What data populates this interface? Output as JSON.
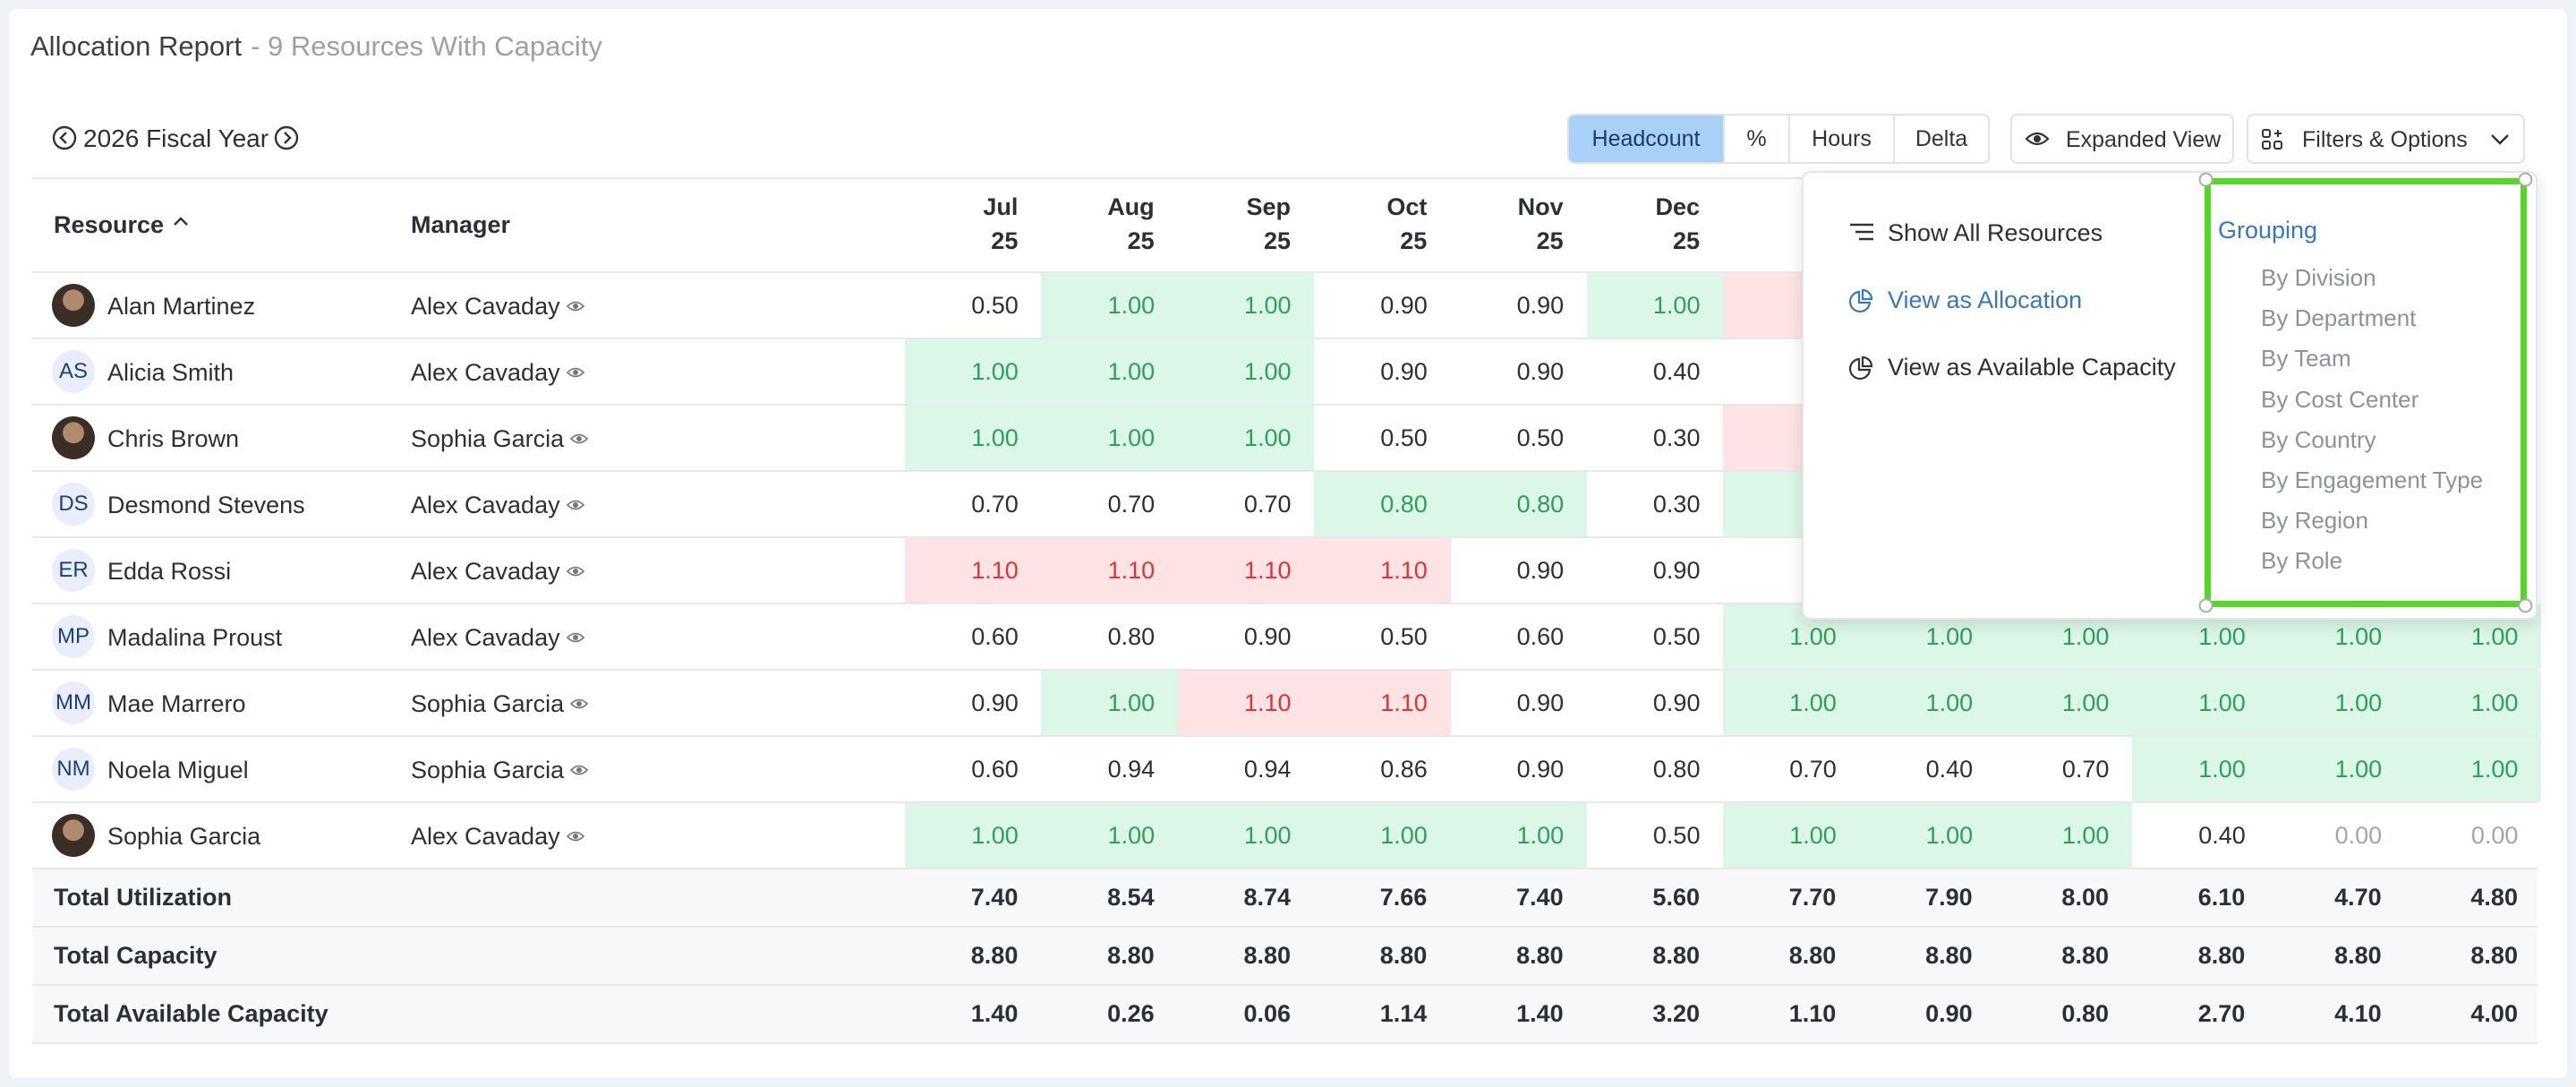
{
  "header": {
    "title": "Allocation Report",
    "subtitle": "- 9 Resources With Capacity"
  },
  "toolbar": {
    "period": "2026 Fiscal Year",
    "modes": [
      "Headcount",
      "%",
      "Hours",
      "Delta"
    ],
    "active_mode": 0,
    "expanded": "Expanded View",
    "filters": "Filters & Options"
  },
  "table": {
    "columns": {
      "resource": "Resource",
      "manager": "Manager"
    },
    "months": [
      {
        "month": "Jul",
        "year": "25"
      },
      {
        "month": "Aug",
        "year": "25"
      },
      {
        "month": "Sep",
        "year": "25"
      },
      {
        "month": "Oct",
        "year": "25"
      },
      {
        "month": "Nov",
        "year": "25"
      },
      {
        "month": "Dec",
        "year": "25"
      },
      null,
      null,
      null,
      null,
      null,
      null
    ],
    "rows": [
      {
        "name": "Alan Martinez",
        "manager": "Alex Cavaday",
        "values": [
          "0.50",
          "1.00",
          "1.00",
          "0.90",
          "0.90",
          "1.00",
          null,
          null,
          null,
          null,
          null,
          null
        ],
        "tones": [
          "n",
          "g",
          "g",
          "n",
          "n",
          "g",
          "r",
          "n",
          "n",
          "n",
          "n",
          "n"
        ]
      },
      {
        "name": "Alicia Smith",
        "initials": "AS",
        "manager": "Alex Cavaday",
        "values": [
          "1.00",
          "1.00",
          "1.00",
          "0.90",
          "0.90",
          "0.40",
          null,
          null,
          null,
          null,
          null,
          null
        ],
        "tones": [
          "g",
          "g",
          "g",
          "n",
          "n",
          "n",
          "n",
          "n",
          "n",
          "n",
          "n",
          "n"
        ]
      },
      {
        "name": "Chris Brown",
        "manager": "Sophia Garcia",
        "values": [
          "1.00",
          "1.00",
          "1.00",
          "0.50",
          "0.50",
          "0.30",
          null,
          null,
          null,
          null,
          null,
          null
        ],
        "tones": [
          "g",
          "g",
          "g",
          "n",
          "n",
          "n",
          "r",
          "n",
          "n",
          "n",
          "n",
          "n"
        ]
      },
      {
        "name": "Desmond Stevens",
        "initials": "DS",
        "manager": "Alex Cavaday",
        "values": [
          "0.70",
          "0.70",
          "0.70",
          "0.80",
          "0.80",
          "0.30",
          null,
          null,
          null,
          null,
          null,
          null
        ],
        "tones": [
          "n",
          "n",
          "n",
          "g",
          "g",
          "n",
          "g",
          "n",
          "n",
          "n",
          "n",
          "n"
        ]
      },
      {
        "name": "Edda Rossi",
        "initials": "ER",
        "manager": "Alex Cavaday",
        "values": [
          "1.10",
          "1.10",
          "1.10",
          "1.10",
          "0.90",
          "0.90",
          null,
          null,
          null,
          null,
          null,
          null
        ],
        "tones": [
          "r",
          "r",
          "r",
          "r",
          "n",
          "n",
          "n",
          "n",
          "n",
          "n",
          "n",
          "n"
        ]
      },
      {
        "name": "Madalina Proust",
        "initials": "MP",
        "manager": "Alex Cavaday",
        "values": [
          "0.60",
          "0.80",
          "0.90",
          "0.50",
          "0.60",
          "0.50",
          "1.00",
          "1.00",
          "1.00",
          "1.00",
          "1.00",
          "1.00"
        ],
        "tones": [
          "n",
          "n",
          "n",
          "n",
          "n",
          "n",
          "g",
          "g",
          "g",
          "g",
          "g",
          "g"
        ]
      },
      {
        "name": "Mae Marrero",
        "initials": "MM",
        "manager": "Sophia Garcia",
        "values": [
          "0.90",
          "1.00",
          "1.10",
          "1.10",
          "0.90",
          "0.90",
          "1.00",
          "1.00",
          "1.00",
          "1.00",
          "1.00",
          "1.00"
        ],
        "tones": [
          "n",
          "g",
          "r",
          "r",
          "n",
          "n",
          "g",
          "g",
          "g",
          "g",
          "g",
          "g"
        ]
      },
      {
        "name": "Noela Miguel",
        "initials": "NM",
        "manager": "Sophia Garcia",
        "values": [
          "0.60",
          "0.94",
          "0.94",
          "0.86",
          "0.90",
          "0.80",
          "0.70",
          "0.40",
          "0.70",
          "1.00",
          "1.00",
          "1.00"
        ],
        "tones": [
          "n",
          "n",
          "n",
          "n",
          "n",
          "n",
          "n",
          "n",
          "n",
          "g",
          "g",
          "g"
        ]
      },
      {
        "name": "Sophia Garcia",
        "manager": "Alex Cavaday",
        "values": [
          "1.00",
          "1.00",
          "1.00",
          "1.00",
          "1.00",
          "0.50",
          "1.00",
          "1.00",
          "1.00",
          "0.40",
          "0.00",
          "0.00"
        ],
        "tones": [
          "g",
          "g",
          "g",
          "g",
          "g",
          "n",
          "g",
          "g",
          "g",
          "n",
          "m",
          "m"
        ]
      }
    ],
    "totals": [
      {
        "label": "Total Utilization",
        "values": [
          "7.40",
          "8.54",
          "8.74",
          "7.66",
          "7.40",
          "5.60",
          "7.70",
          "7.90",
          "8.00",
          "6.10",
          "4.70",
          "4.80"
        ]
      },
      {
        "label": "Total Capacity",
        "values": [
          "8.80",
          "8.80",
          "8.80",
          "8.80",
          "8.80",
          "8.80",
          "8.80",
          "8.80",
          "8.80",
          "8.80",
          "8.80",
          "8.80"
        ]
      },
      {
        "label": "Total Available Capacity",
        "values": [
          "1.40",
          "0.26",
          "0.06",
          "1.14",
          "1.40",
          "3.20",
          "1.10",
          "0.90",
          "0.80",
          "2.70",
          "4.10",
          "4.00"
        ]
      }
    ]
  },
  "menu": {
    "actions": [
      "Show All Resources",
      "View as Allocation",
      "View as Available Capacity"
    ],
    "active_action": 1,
    "grouping_title": "Grouping",
    "grouping": [
      "By Division",
      "By Department",
      "By Team",
      "By Cost Center",
      "By Country",
      "By Engagement Type",
      "By Region",
      "By Role"
    ]
  }
}
